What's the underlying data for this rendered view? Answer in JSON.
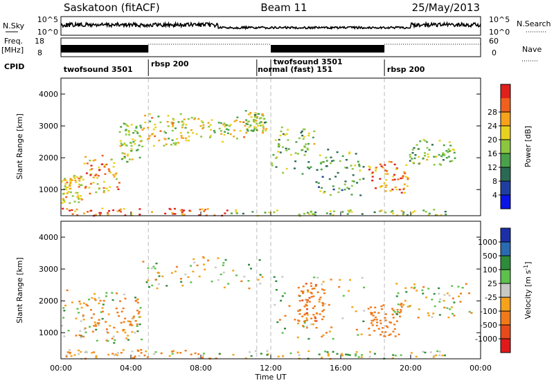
{
  "header": {
    "radar": "Saskatoon (fitACF)",
    "beam": "Beam 11",
    "date": "25/May/2013"
  },
  "noise_panel": {
    "left_label": "N.Sky",
    "right_label": "N.Search",
    "ticks": [
      "10^5",
      "10^0"
    ]
  },
  "freq_panel": {
    "left_label_1": "Freq.",
    "left_label_2": "[MHz]",
    "right_label": "Nave",
    "left_ticks": [
      "18",
      "8"
    ],
    "right_ticks": [
      "60",
      "0"
    ]
  },
  "cpid": {
    "label": "CPID",
    "segments": [
      {
        "name": "twofsound 3501",
        "start": 0.0,
        "end": 5.0
      },
      {
        "name": "rbsp 200",
        "start": 5.0,
        "end": 11.2
      },
      {
        "name": "normal (fast) 151",
        "start": 11.2,
        "end": 12.0
      },
      {
        "name": "twofsound 3501",
        "start": 12.0,
        "end": 18.5
      },
      {
        "name": "rbsp 200",
        "start": 18.5,
        "end": 24.0
      }
    ],
    "boundaries_hr": [
      5.0,
      11.2,
      12.0,
      18.5
    ]
  },
  "x_axis": {
    "label": "Time UT",
    "ticks": [
      "00:00",
      "04:00",
      "08:00",
      "12:00",
      "16:00",
      "20:00",
      "00:00"
    ]
  },
  "power_panel": {
    "ylabel": "Slant Range [km]",
    "yticks": [
      "1000",
      "2000",
      "3000",
      "4000"
    ],
    "cbar_label": "Power [dB]",
    "cbar_ticks": [
      "4",
      "8",
      "12",
      "16",
      "20",
      "24",
      "28"
    ],
    "cbar_colors": [
      "#0a14e6",
      "#1f3fa0",
      "#2a6a55",
      "#49a24a",
      "#8cc63f",
      "#e8d21f",
      "#f6a21a",
      "#f0601c",
      "#e0201c"
    ]
  },
  "velocity_panel": {
    "ylabel": "Slant Range [km]",
    "yticks": [
      "1000",
      "2000",
      "3000",
      "4000"
    ],
    "cbar_label": "Velocity [m s",
    "cbar_label_sup": "-1",
    "cbar_label_end": "]",
    "cbar_ticks": [
      "1000",
      "500",
      "100",
      "25",
      "-25",
      "-100",
      "-500",
      "-1000"
    ],
    "cbar_colors": [
      "#1c2fa8",
      "#2a6ab0",
      "#2e8b3a",
      "#5cc24c",
      "#c8c8c4",
      "#f6a21a",
      "#f07a1a",
      "#e84a1a",
      "#e01a1a"
    ]
  },
  "chart_data": {
    "type": "heatmap",
    "title": "Saskatoon (fitACF) Beam 11 25/May/2013",
    "xlabel": "Time UT",
    "ylabel": "Slant Range [km]",
    "xlim_hours": [
      0,
      24
    ],
    "ylim_km": [
      180,
      4500
    ],
    "panels": [
      {
        "name": "Power",
        "unit": "dB",
        "range": [
          0,
          30
        ],
        "echo_regions": [
          {
            "t0": 0.0,
            "t1": 1.2,
            "r0": 600,
            "r1": 1500,
            "value": 20
          },
          {
            "t0": 1.2,
            "t1": 3.3,
            "r0": 900,
            "r1": 2100,
            "value": 22
          },
          {
            "t0": 3.3,
            "t1": 4.6,
            "r0": 1900,
            "r1": 3100,
            "value": 16
          },
          {
            "t0": 4.6,
            "t1": 7.0,
            "r0": 2400,
            "r1": 3400,
            "value": 18
          },
          {
            "t0": 7.0,
            "t1": 10.5,
            "r0": 2500,
            "r1": 3300,
            "value": 18
          },
          {
            "t0": 10.5,
            "t1": 11.7,
            "r0": 2800,
            "r1": 3500,
            "value": 16
          },
          {
            "t0": 12.0,
            "t1": 14.5,
            "r0": 1500,
            "r1": 3000,
            "value": 14
          },
          {
            "t0": 14.5,
            "t1": 17.5,
            "r0": 800,
            "r1": 2300,
            "value": 12
          },
          {
            "t0": 17.5,
            "t1": 19.8,
            "r0": 900,
            "r1": 1900,
            "value": 24
          },
          {
            "t0": 19.8,
            "t1": 22.5,
            "r0": 1800,
            "r1": 2600,
            "value": 14
          },
          {
            "t0": 0.0,
            "t1": 9.5,
            "r0": 200,
            "r1": 450,
            "value": 26
          },
          {
            "t0": 9.5,
            "t1": 22.0,
            "r0": 200,
            "r1": 400,
            "value": 14
          }
        ]
      },
      {
        "name": "Velocity",
        "unit": "m s^-1",
        "range": [
          -1000,
          1000
        ],
        "echo_regions": [
          {
            "t0": 0.0,
            "t1": 4.6,
            "r0": 700,
            "r1": 2400,
            "value": 0
          },
          {
            "t0": 1.0,
            "t1": 4.5,
            "r0": 1000,
            "r1": 2100,
            "value": -150
          },
          {
            "t0": 4.6,
            "t1": 11.5,
            "r0": 2400,
            "r1": 3400,
            "value": 0
          },
          {
            "t0": 12.0,
            "t1": 17.5,
            "r0": 800,
            "r1": 2800,
            "value": 0
          },
          {
            "t0": 13.5,
            "t1": 15.0,
            "r0": 1300,
            "r1": 2600,
            "value": -400
          },
          {
            "t0": 17.5,
            "t1": 19.5,
            "r0": 900,
            "r1": 1900,
            "value": -300
          },
          {
            "t0": 19.0,
            "t1": 23.5,
            "r0": 1500,
            "r1": 2600,
            "value": 0
          },
          {
            "t0": 0.0,
            "t1": 9.0,
            "r0": 200,
            "r1": 500,
            "value": -100
          },
          {
            "t0": 9.0,
            "t1": 22.0,
            "r0": 200,
            "r1": 450,
            "value": 50
          }
        ]
      }
    ]
  }
}
